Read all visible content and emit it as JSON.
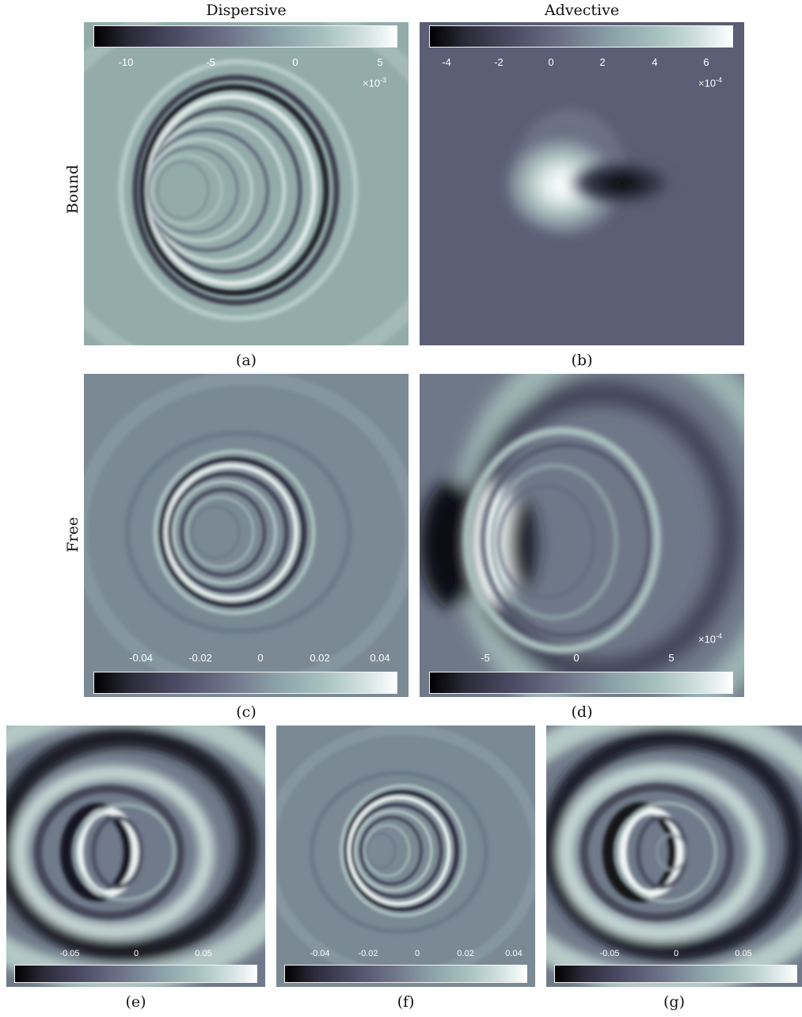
{
  "column_titles": [
    "Dispersive",
    "Advective"
  ],
  "row_labels": [
    "Bound",
    "Free"
  ],
  "panels": [
    {
      "caption": "(a)",
      "ticks": [
        "-10",
        "-5",
        "0",
        "5"
      ],
      "multiplier_base": "×10",
      "multiplier_exp": "-3",
      "colorbar_range": [
        -12,
        6
      ]
    },
    {
      "caption": "(b)",
      "ticks": [
        "-4",
        "-2",
        "0",
        "2",
        "4",
        "6"
      ],
      "multiplier_base": "×10",
      "multiplier_exp": "-4",
      "colorbar_range": [
        -4.5,
        7
      ]
    },
    {
      "caption": "(c)",
      "ticks": [
        "-0.04",
        "-0.02",
        "0",
        "0.02",
        "0.04"
      ],
      "multiplier_base": "",
      "multiplier_exp": "",
      "colorbar_range": [
        -0.05,
        0.045
      ]
    },
    {
      "caption": "(d)",
      "ticks": [
        "-5",
        "0",
        "5"
      ],
      "multiplier_base": "×10",
      "multiplier_exp": "-4",
      "colorbar_range": [
        -9,
        10
      ]
    },
    {
      "caption": "(e)",
      "ticks": [
        "-0.05",
        "0",
        "0.05"
      ],
      "multiplier_base": "",
      "multiplier_exp": "",
      "colorbar_range": [
        -0.09,
        0.09
      ]
    },
    {
      "caption": "(f)",
      "ticks": [
        "-0.04",
        "-0.02",
        "0",
        "0.02",
        "0.04"
      ],
      "multiplier_base": "",
      "multiplier_exp": "",
      "colorbar_range": [
        -0.05,
        0.045
      ]
    },
    {
      "caption": "(g)",
      "ticks": [
        "-0.05",
        "0",
        "0.05"
      ],
      "multiplier_base": "",
      "multiplier_exp": "",
      "colorbar_range": [
        -0.09,
        0.09
      ]
    }
  ],
  "colors": {
    "dark": "#000000",
    "mid": "#6e7288",
    "light": "#ffffff",
    "bg_light": "#93aca9",
    "bg_dark": "#5b5e74",
    "bg_grey": "#7a8994"
  }
}
